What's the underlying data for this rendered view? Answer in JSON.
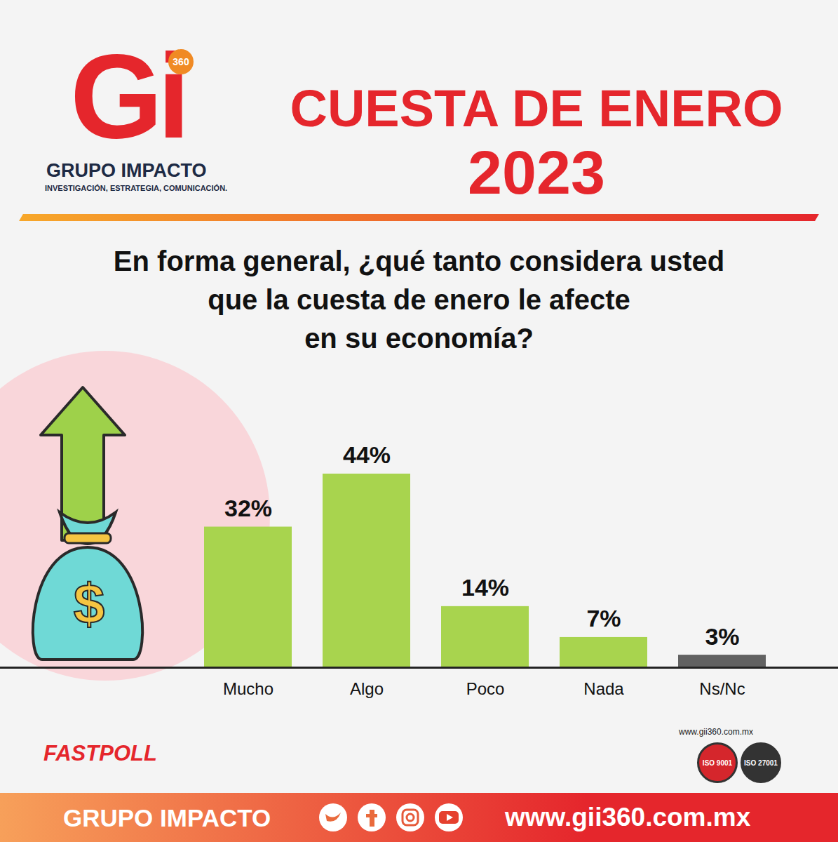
{
  "chart_data": {
    "type": "bar",
    "title": "CUESTA DE ENERO 2023",
    "subtitle": [
      "En forma general, ¿qué tanto considera usted",
      "que la cuesta de enero le afecte",
      "en su economía?"
    ],
    "categories": [
      "Mucho",
      "Algo",
      "Poco",
      "Nada",
      "Ns/Nc"
    ],
    "values": [
      32,
      44,
      14,
      7,
      3
    ],
    "value_labels": [
      "32%",
      "44%",
      "14%",
      "7%",
      "3%"
    ],
    "colors": [
      "#a8d44e",
      "#a8d44e",
      "#a8d44e",
      "#a8d44e",
      "#616161"
    ],
    "data_labels": true,
    "tick_labels": "x",
    "grid": false
  },
  "logo": {
    "mark": "Gi",
    "badge": "360",
    "name": "GRUPO IMPACTO",
    "tagline": "INVESTIGACIÓN, ESTRATEGIA, COMUNICACIÓN."
  },
  "icon_text": "$",
  "note": "FASTPOLL",
  "footer": {
    "brand": "GRUPO IMPACTO",
    "url": "www.gii360.com.mx",
    "small_url": "www.gii360.com.mx",
    "certifications": [
      "ISO 9001",
      "ISO 27001"
    ]
  }
}
